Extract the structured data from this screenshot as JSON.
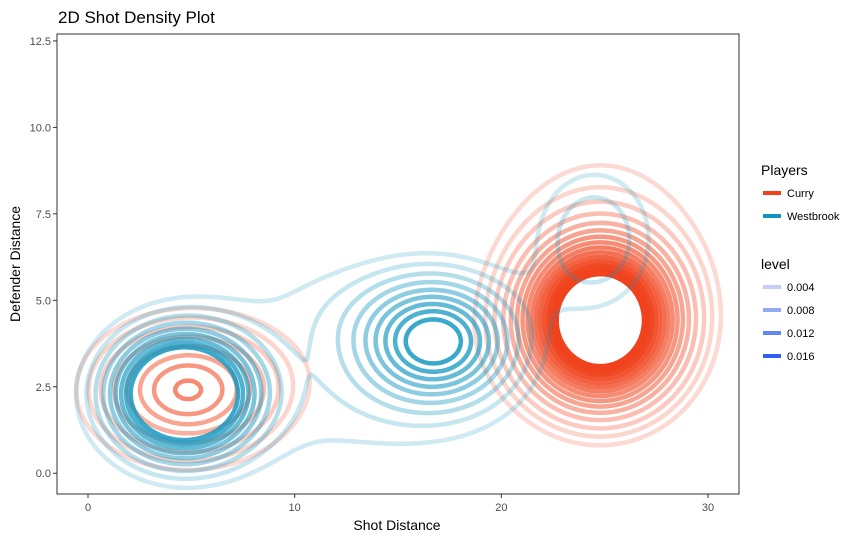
{
  "chart_data": {
    "type": "contour",
    "title": "2D Shot Density Plot",
    "xlabel": "Shot Distance",
    "ylabel": "Defender Distance",
    "xlim": [
      -1.5,
      31.5
    ],
    "ylim": [
      -0.6,
      12.7
    ],
    "x_ticks": [
      0,
      10,
      20,
      30
    ],
    "y_ticks": [
      0.0,
      2.5,
      5.0,
      7.5,
      10.0,
      12.5
    ],
    "x_tick_labels": [
      "0",
      "10",
      "20",
      "30"
    ],
    "y_tick_labels": [
      "0.0",
      "2.5",
      "5.0",
      "7.5",
      "10.0",
      "12.5"
    ],
    "grid": false,
    "legend_position": "right",
    "legends": [
      {
        "title": "Players",
        "entries": [
          {
            "label": "Curry",
            "color": "#f0421c"
          },
          {
            "label": "Westbrook",
            "color": "#1196c0"
          }
        ]
      },
      {
        "title": "level",
        "entries": [
          {
            "label": "0.004",
            "color": "#c4d1f5"
          },
          {
            "label": "0.008",
            "color": "#92a9f3"
          },
          {
            "label": "0.012",
            "color": "#6386f1"
          },
          {
            "label": "0.016",
            "color": "#2e5ff0"
          }
        ]
      }
    ],
    "series": [
      {
        "name": "Curry",
        "color": "#f0421c",
        "components": [
          {
            "cx": 24.8,
            "cy": 4.4,
            "sx": 2.4,
            "sy": 1.5,
            "w": 0.66
          },
          {
            "cx": 4.8,
            "cy": 2.4,
            "sx": 2.8,
            "sy": 1.2,
            "w": 0.22
          },
          {
            "cx": 24.8,
            "cy": 8.2,
            "sx": 4.5,
            "sy": 2.2,
            "w": 0.09
          },
          {
            "cx": 13.0,
            "cy": 3.5,
            "sx": 6.0,
            "sy": 1.8,
            "w": 0.05
          }
        ],
        "levels": [
          0.0017,
          0.0025,
          0.0035,
          0.0048,
          0.0062,
          0.0076,
          0.009,
          0.0104,
          0.0118,
          0.0132,
          0.0146,
          0.016,
          0.0174,
          0.0188,
          0.0202
        ]
      },
      {
        "name": "Westbrook",
        "color": "#1196c0",
        "components": [
          {
            "cx": 4.6,
            "cy": 2.3,
            "sx": 2.1,
            "sy": 1.1,
            "w": 0.42
          },
          {
            "cx": 16.8,
            "cy": 3.8,
            "sx": 2.3,
            "sy": 1.1,
            "w": 0.24
          },
          {
            "cx": 24.5,
            "cy": 6.8,
            "sx": 2.0,
            "sy": 1.4,
            "w": 0.07
          },
          {
            "cx": 12.0,
            "cy": 2.0,
            "sx": 6.5,
            "sy": 1.6,
            "w": 0.13
          },
          {
            "cx": 13.5,
            "cy": 4.8,
            "sx": 5.0,
            "sy": 1.2,
            "w": 0.07
          }
        ],
        "levels": [
          0.0017,
          0.0028,
          0.0042,
          0.0058,
          0.0075,
          0.0092,
          0.011,
          0.0128,
          0.0146
        ]
      }
    ],
    "alpha_scale": {
      "min_alpha": 0.2,
      "max_alpha": 1.0,
      "level_min": 0.002,
      "level_max": 0.018
    }
  }
}
